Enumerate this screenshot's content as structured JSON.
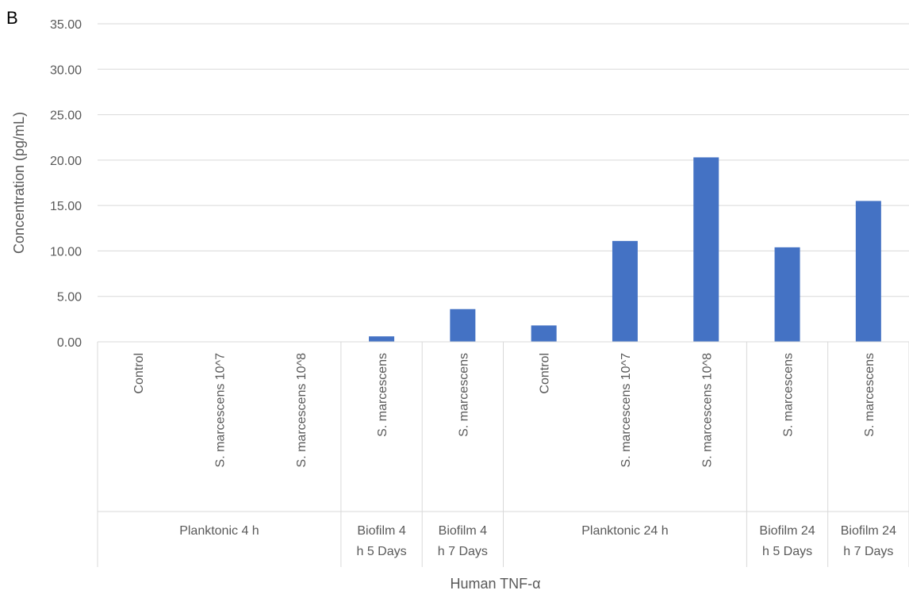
{
  "panel_label": "B",
  "chart_data": {
    "type": "bar",
    "xlabel": "Human TNF-α",
    "ylabel": "Concentration (pg/mL)",
    "ylim": [
      0,
      35
    ],
    "yticks": [
      "0.00",
      "5.00",
      "10.00",
      "15.00",
      "20.00",
      "25.00",
      "30.00",
      "35.00"
    ],
    "grid": true,
    "bar_color": "#4472C4",
    "categories": [
      "Control",
      "S. marcescens 10^7",
      "S. marcescens 10^8",
      "S. marcescens",
      "S. marcescens",
      "Control",
      "S. marcescens 10^7",
      "S. marcescens 10^8",
      "S. marcescens",
      "S. marcescens"
    ],
    "values": [
      0,
      0,
      0,
      0.6,
      3.6,
      1.8,
      11.1,
      20.3,
      10.4,
      15.5
    ],
    "groups": [
      {
        "lines": [
          "Planktonic  4 h"
        ],
        "count": 3
      },
      {
        "lines": [
          "Biofilm 4",
          "h 5 Days"
        ],
        "count": 1
      },
      {
        "lines": [
          "Biofilm 4",
          "h 7 Days"
        ],
        "count": 1
      },
      {
        "lines": [
          "Planktonic 24 h"
        ],
        "count": 3
      },
      {
        "lines": [
          "Biofilm 24",
          "h 5 Days"
        ],
        "count": 1
      },
      {
        "lines": [
          "Biofilm 24",
          "h 7 Days"
        ],
        "count": 1
      }
    ]
  }
}
